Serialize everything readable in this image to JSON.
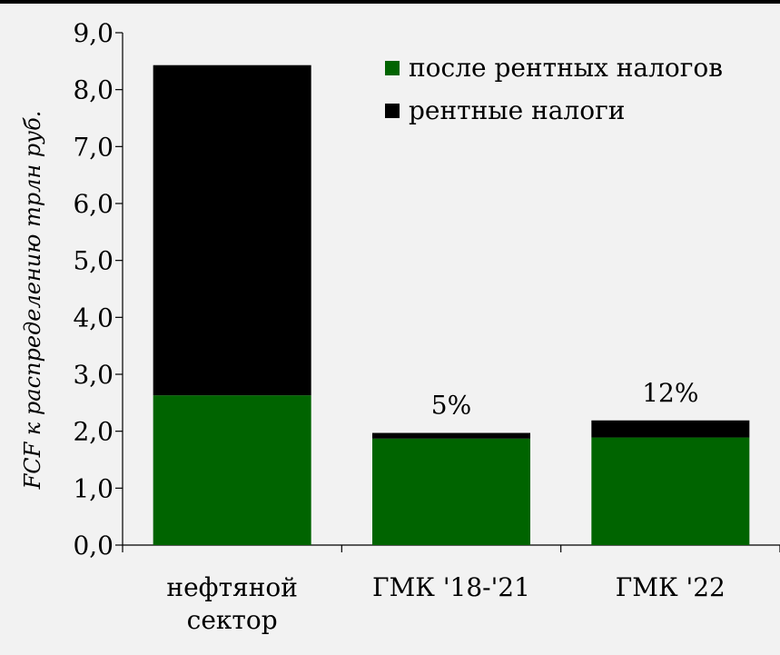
{
  "chart_data": {
    "type": "bar",
    "stacked": true,
    "categories": [
      [
        "нефтяной",
        "сектор"
      ],
      [
        "ГМК '18-'21"
      ],
      [
        "ГМК '22"
      ]
    ],
    "series": [
      {
        "name": "после рентных налогов",
        "values": [
          2.63,
          1.87,
          1.89
        ],
        "color": "#006400"
      },
      {
        "name": "рентные налоги",
        "values": [
          5.8,
          0.1,
          0.3
        ],
        "color": "#000000"
      }
    ],
    "annotations": [
      "",
      "5%",
      "12%"
    ],
    "ylabel": "FCF к распределению трлн руб.",
    "ylim": [
      0,
      9
    ],
    "yticks": [
      "0,0",
      "1,0",
      "2,0",
      "3,0",
      "4,0",
      "5,0",
      "6,0",
      "7,0",
      "8,0",
      "9,0"
    ],
    "legend_position": "top-right",
    "grid": false
  }
}
